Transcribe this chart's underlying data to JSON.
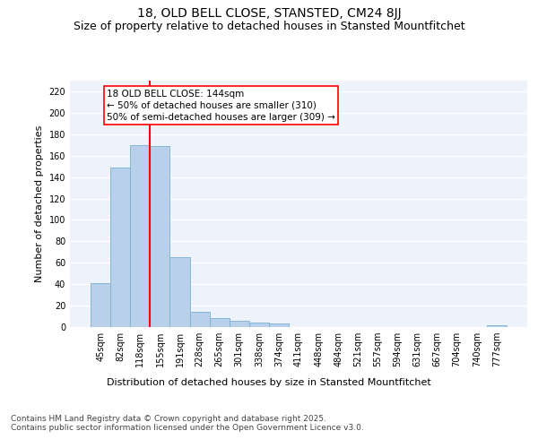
{
  "title": "18, OLD BELL CLOSE, STANSTED, CM24 8JJ",
  "subtitle": "Size of property relative to detached houses in Stansted Mountfitchet",
  "xlabel": "Distribution of detached houses by size in Stansted Mountfitchet",
  "ylabel": "Number of detached properties",
  "categories": [
    "45sqm",
    "82sqm",
    "118sqm",
    "155sqm",
    "191sqm",
    "228sqm",
    "265sqm",
    "301sqm",
    "338sqm",
    "374sqm",
    "411sqm",
    "448sqm",
    "484sqm",
    "521sqm",
    "557sqm",
    "594sqm",
    "631sqm",
    "667sqm",
    "704sqm",
    "740sqm",
    "777sqm"
  ],
  "values": [
    41,
    149,
    170,
    169,
    65,
    14,
    8,
    6,
    4,
    3,
    0,
    0,
    0,
    0,
    0,
    0,
    0,
    0,
    0,
    0,
    2
  ],
  "bar_color": "#b8d0ea",
  "bar_edge_color": "#7aafd4",
  "vline_color": "red",
  "annotation_text": "18 OLD BELL CLOSE: 144sqm\n← 50% of detached houses are smaller (310)\n50% of semi-detached houses are larger (309) →",
  "annotation_box_color": "white",
  "annotation_box_edge": "red",
  "ylim": [
    0,
    230
  ],
  "yticks": [
    0,
    20,
    40,
    60,
    80,
    100,
    120,
    140,
    160,
    180,
    200,
    220
  ],
  "background_color": "#eef2fb",
  "footer": "Contains HM Land Registry data © Crown copyright and database right 2025.\nContains public sector information licensed under the Open Government Licence v3.0.",
  "title_fontsize": 10,
  "subtitle_fontsize": 9,
  "axis_label_fontsize": 8,
  "tick_fontsize": 7,
  "annotation_fontsize": 7.5,
  "footer_fontsize": 6.5
}
